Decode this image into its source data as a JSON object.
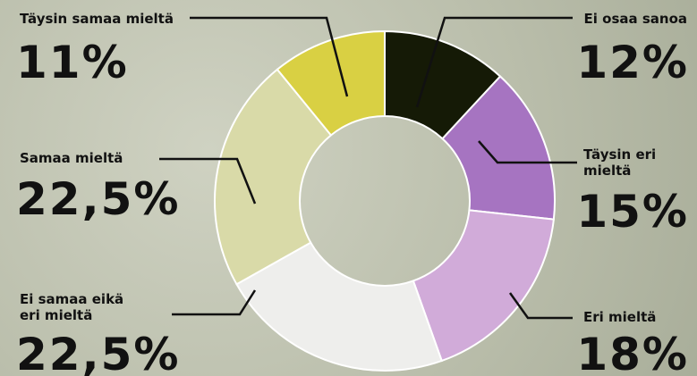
{
  "chart_data": {
    "type": "pie",
    "categories": [
      "Ei osaa sanoa",
      "Täysin eri mieltä",
      "Eri mieltä",
      "Ei samaa eikä eri mieltä",
      "Samaa mieltä",
      "Täysin samaa mieltä"
    ],
    "values": [
      12,
      15,
      18,
      22.5,
      22.5,
      11
    ],
    "value_labels": [
      "12%",
      "15%",
      "18%",
      "22,5%",
      "22,5%",
      "11%"
    ],
    "colors": [
      "#151a06",
      "#a674c1",
      "#d1abd9",
      "#eeeeec",
      "#d9daa8",
      "#d9d043"
    ]
  }
}
